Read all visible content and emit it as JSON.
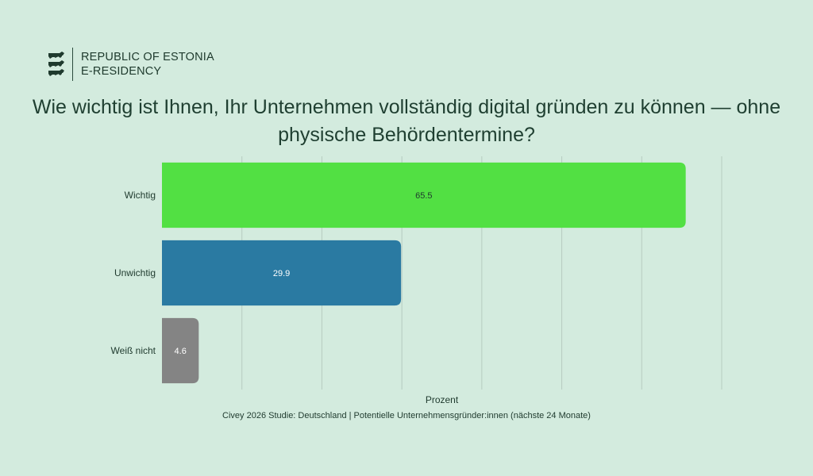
{
  "brand": {
    "line1": "REPUBLIC OF ESTONIA",
    "line2": "E-RESIDENCY"
  },
  "chart_data": {
    "type": "bar",
    "orientation": "horizontal",
    "title": "Wie wichtig ist Ihnen, Ihr Unternehmen vollständig digital gründen zu können — ohne physische Behördentermine?",
    "xlabel": "Prozent",
    "ylabel": "",
    "categories": [
      "Wichtig",
      "Unwichtig",
      "Weiß nicht"
    ],
    "values": [
      65.5,
      29.9,
      4.6
    ],
    "value_labels": [
      "65.5",
      "29.9",
      "4.6"
    ],
    "colors": [
      "#52e043",
      "#2a7aa2",
      "#848484"
    ],
    "label_colors": [
      "#1f3a2e",
      "#ffffff",
      "#ffffff"
    ],
    "xlim": [
      0,
      70
    ],
    "grid": true,
    "show_x_tick_labels": false,
    "source": "Civey 2026 Studie: Deutschland | Potentielle Unternehmensgründer:innen (nächste 24 Monate)"
  }
}
